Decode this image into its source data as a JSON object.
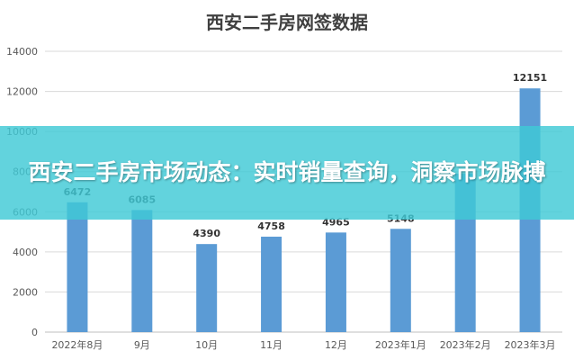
{
  "chart_data": {
    "type": "bar",
    "title": "西安二手房网签数据",
    "categories": [
      "2022年8月",
      "9月",
      "10月",
      "11月",
      "12月",
      "2023年1月",
      "2023年2月",
      "2023年3月"
    ],
    "values": [
      6472,
      6085,
      4390,
      4758,
      4965,
      5148,
      7900,
      12151
    ],
    "data_labels": [
      "6472",
      "6085",
      "4390",
      "4758",
      "4965",
      "5148",
      "",
      "12151"
    ],
    "yticks": [
      0,
      2000,
      4000,
      6000,
      8000,
      10000,
      12000,
      14000
    ],
    "ylim": [
      0,
      14000
    ],
    "xlabel": "",
    "ylabel": "",
    "grid": true,
    "bar_color": "#5B9BD5"
  },
  "overlay": {
    "text": "西安二手房市场动态：实时销量查询，洞察市场脉搏",
    "color": "#40C9D6"
  }
}
